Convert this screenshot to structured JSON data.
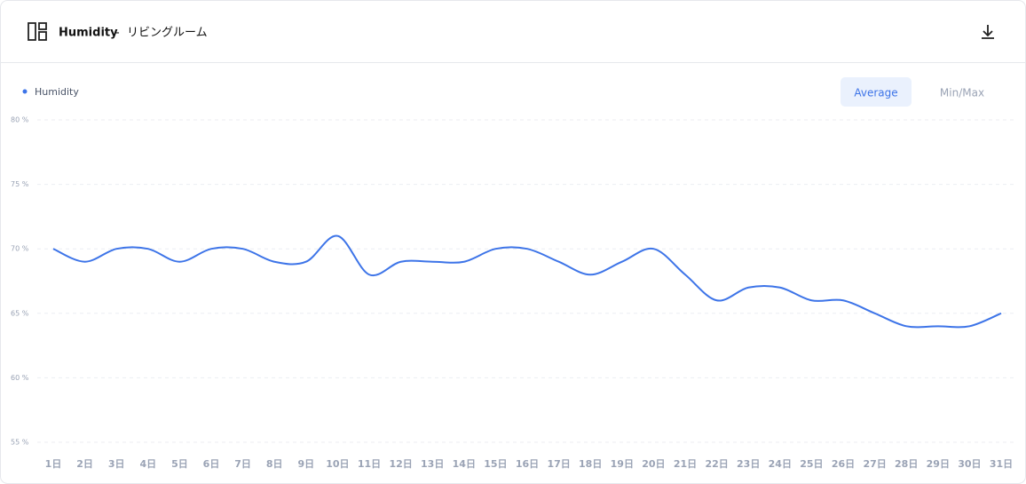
{
  "header": {
    "title": "Humidity",
    "separator": "-",
    "room": "リビングルーム"
  },
  "controls": [
    "Average",
    "Min/Max"
  ],
  "chart_data": {
    "type": "line",
    "categories": [
      "1日",
      "2日",
      "3日",
      "4日",
      "5日",
      "6日",
      "7日",
      "8日",
      "9日",
      "10日",
      "11日",
      "12日",
      "13日",
      "14日",
      "15日",
      "16日",
      "17日",
      "18日",
      "19日",
      "20日",
      "21日",
      "22日",
      "23日",
      "24日",
      "25日",
      "26日",
      "27日",
      "28日",
      "29日",
      "30日",
      "31日"
    ],
    "series": [
      {
        "name": "Humidity",
        "color": "#3d74e8",
        "values": [
          70,
          69,
          70,
          70,
          69,
          70,
          70,
          69,
          69,
          71,
          68,
          69,
          69,
          69,
          70,
          70,
          69,
          68,
          69,
          70,
          68,
          66,
          67,
          67,
          66,
          66,
          65,
          64,
          64,
          64,
          65
        ]
      }
    ],
    "ylim": [
      55,
      80
    ],
    "yticks": [
      {
        "value": 55,
        "label": "55 %"
      },
      {
        "value": 60,
        "label": "60 %"
      },
      {
        "value": 65,
        "label": "65 %"
      },
      {
        "value": 70,
        "label": "70 %"
      },
      {
        "value": 75,
        "label": "75 %"
      },
      {
        "value": 80,
        "label": "80 %"
      }
    ],
    "grid": true
  }
}
